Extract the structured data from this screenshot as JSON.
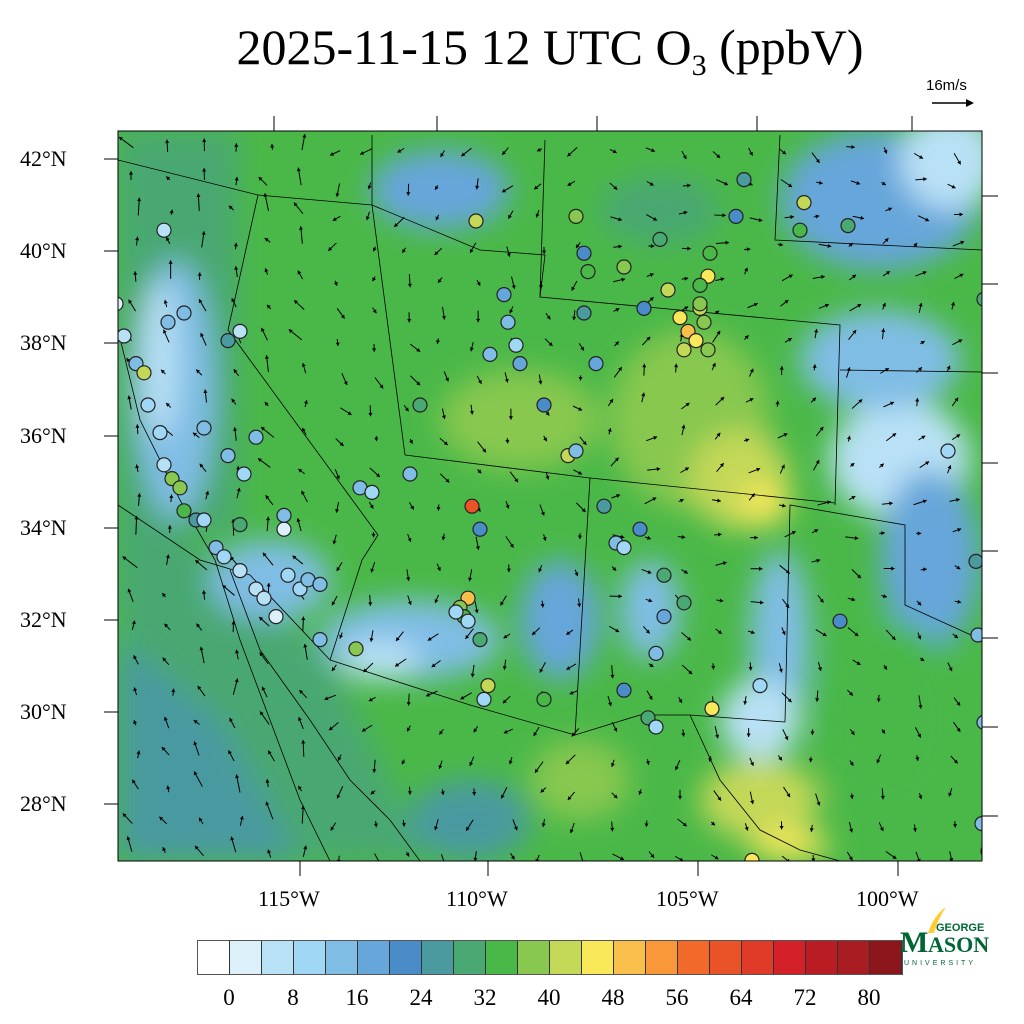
{
  "title": {
    "main": "2025-11-15 12 UTC O",
    "sub": "3",
    "units": " (ppbV)"
  },
  "wind_reference": {
    "label": "16m/s",
    "speed": 16
  },
  "axes": {
    "lat_labels": [
      "42°N",
      "40°N",
      "38°N",
      "36°N",
      "34°N",
      "32°N",
      "30°N",
      "28°N"
    ],
    "lon_labels": [
      "115°W",
      "110°W",
      "105°W",
      "100°W"
    ]
  },
  "colorbar": {
    "labels": [
      "0",
      "8",
      "16",
      "24",
      "32",
      "40",
      "48",
      "56",
      "64",
      "72",
      "80"
    ],
    "step": 4,
    "colors": [
      "#ffffff",
      "#dcf0fa",
      "#b9e1f6",
      "#9fd7f4",
      "#80bde5",
      "#66a6da",
      "#4a8cc8",
      "#4a9aa0",
      "#4aa872",
      "#4ab848",
      "#88c850",
      "#c4d858",
      "#f8e85a",
      "#f8c04a",
      "#f89838",
      "#f26a2a",
      "#ea5228",
      "#e03a28",
      "#d42028",
      "#ba1c24",
      "#a81c22",
      "#8c161c"
    ]
  },
  "logo": {
    "line1": "GEORGE",
    "line2": "MASON",
    "line3": "UNIVERSITY",
    "color": "#006633",
    "accent": "#ffcc33"
  },
  "stations": [
    {
      "lon": -104.5,
      "lat": 38.9,
      "o3": 46
    },
    {
      "lon": -104.3,
      "lat": 38.6,
      "o3": 48
    },
    {
      "lon": -104.1,
      "lat": 38.4,
      "o3": 44
    },
    {
      "lon": -104.4,
      "lat": 38.2,
      "o3": 42
    },
    {
      "lon": -104.0,
      "lat": 39.1,
      "o3": 40
    },
    {
      "lon": -103.9,
      "lat": 38.8,
      "o3": 36
    },
    {
      "lon": -104.0,
      "lat": 39.2,
      "o3": 38
    },
    {
      "lon": -103.8,
      "lat": 38.2,
      "o3": 36
    },
    {
      "lon": -103.8,
      "lat": 39.8,
      "o3": 44
    },
    {
      "lon": -104.8,
      "lat": 39.5,
      "o3": 40
    },
    {
      "lon": -118.6,
      "lat": 39.2,
      "o3": 2
    },
    {
      "lon": -118.4,
      "lat": 38.5,
      "o3": 6
    },
    {
      "lon": -118.1,
      "lat": 37.9,
      "o3": 12
    },
    {
      "lon": -117.9,
      "lat": 37.7,
      "o3": 40
    },
    {
      "lon": -117.8,
      "lat": 37.0,
      "o3": 8
    },
    {
      "lon": -117.5,
      "lat": 36.4,
      "o3": 10
    },
    {
      "lon": -117.4,
      "lat": 35.7,
      "o3": 6
    },
    {
      "lon": -117.2,
      "lat": 35.4,
      "o3": 38
    },
    {
      "lon": -117.0,
      "lat": 35.2,
      "o3": 36
    },
    {
      "lon": -116.9,
      "lat": 34.7,
      "o3": 34
    },
    {
      "lon": -116.6,
      "lat": 34.5,
      "o3": 24
    },
    {
      "lon": -116.4,
      "lat": 34.5,
      "o3": 8
    },
    {
      "lon": -116.1,
      "lat": 33.9,
      "o3": 12
    },
    {
      "lon": -115.9,
      "lat": 33.7,
      "o3": 8
    },
    {
      "lon": -115.5,
      "lat": 33.4,
      "o3": 6
    },
    {
      "lon": -115.1,
      "lat": 33.0,
      "o3": 4
    },
    {
      "lon": -114.9,
      "lat": 32.8,
      "o3": 6
    },
    {
      "lon": -114.6,
      "lat": 32.4,
      "o3": 2
    },
    {
      "lon": -114.4,
      "lat": 34.3,
      "o3": 2
    },
    {
      "lon": -114.3,
      "lat": 33.3,
      "o3": 8
    },
    {
      "lon": -114.0,
      "lat": 33.0,
      "o3": 10
    },
    {
      "lon": -113.8,
      "lat": 33.2,
      "o3": 14
    },
    {
      "lon": -113.5,
      "lat": 33.1,
      "o3": 12
    },
    {
      "lon": -115.5,
      "lat": 34.4,
      "o3": 30
    },
    {
      "lon": -115.4,
      "lat": 35.5,
      "o3": 10
    },
    {
      "lon": -115.8,
      "lat": 35.9,
      "o3": 14
    },
    {
      "lon": -116.4,
      "lat": 36.5,
      "o3": 12
    },
    {
      "lon": -115.5,
      "lat": 38.6,
      "o3": 6
    },
    {
      "lon": -115.8,
      "lat": 38.4,
      "o3": 24
    },
    {
      "lon": -115.1,
      "lat": 36.3,
      "o3": 12
    },
    {
      "lon": -114.4,
      "lat": 34.6,
      "o3": 14
    },
    {
      "lon": -113.5,
      "lat": 31.9,
      "o3": 14
    },
    {
      "lon": -112.6,
      "lat": 31.7,
      "o3": 36
    },
    {
      "lon": -117.4,
      "lat": 40.8,
      "o3": 6
    },
    {
      "lon": -117.3,
      "lat": 38.8,
      "o3": 14
    },
    {
      "lon": -116.9,
      "lat": 39.0,
      "o3": 12
    },
    {
      "lon": -109.7,
      "lat": 34.8,
      "o3": 60
    },
    {
      "lon": -109.8,
      "lat": 32.8,
      "o3": 48
    },
    {
      "lon": -110.0,
      "lat": 32.6,
      "o3": 38
    },
    {
      "lon": -109.9,
      "lat": 32.4,
      "o3": 34
    },
    {
      "lon": -109.8,
      "lat": 32.3,
      "o3": 10
    },
    {
      "lon": -110.1,
      "lat": 32.5,
      "o3": 8
    },
    {
      "lon": -109.5,
      "lat": 31.9,
      "o3": 30
    },
    {
      "lon": -109.3,
      "lat": 30.9,
      "o3": 40
    },
    {
      "lon": -109.4,
      "lat": 30.6,
      "o3": 10
    },
    {
      "lon": -109.5,
      "lat": 34.3,
      "o3": 20
    },
    {
      "lon": -111.25,
      "lat": 35.5,
      "o3": 12
    },
    {
      "lon": -112.5,
      "lat": 35.2,
      "o3": 14
    },
    {
      "lon": -112.2,
      "lat": 35.1,
      "o3": 10
    },
    {
      "lon": -107.9,
      "lat": 30.6,
      "o3": 32
    },
    {
      "lon": -105.9,
      "lat": 30.8,
      "o3": 20
    },
    {
      "lon": -105.1,
      "lat": 31.6,
      "o3": 12
    },
    {
      "lon": -105.3,
      "lat": 30.2,
      "o3": 30
    },
    {
      "lon": -105.1,
      "lat": 30.0,
      "o3": 8
    },
    {
      "lon": -103.7,
      "lat": 30.4,
      "o3": 46
    },
    {
      "lon": -102.5,
      "lat": 30.9,
      "o3": 10
    },
    {
      "lon": -102.7,
      "lat": 27.1,
      "o3": 44
    },
    {
      "lon": -109.6,
      "lat": 41.0,
      "o3": 42
    },
    {
      "lon": -108.9,
      "lat": 39.4,
      "o3": 16
    },
    {
      "lon": -108.8,
      "lat": 38.8,
      "o3": 12
    },
    {
      "lon": -108.6,
      "lat": 38.3,
      "o3": 10
    },
    {
      "lon": -108.5,
      "lat": 37.9,
      "o3": 16
    },
    {
      "lon": -109.25,
      "lat": 38.1,
      "o3": 14
    },
    {
      "lon": -107.9,
      "lat": 37.0,
      "o3": 22
    },
    {
      "lon": -111.0,
      "lat": 37.0,
      "o3": 30
    },
    {
      "lon": -107.3,
      "lat": 35.9,
      "o3": 40
    },
    {
      "lon": -107.1,
      "lat": 36.0,
      "o3": 12
    },
    {
      "lon": -106.4,
      "lat": 34.8,
      "o3": 24
    },
    {
      "lon": -106.1,
      "lat": 34.0,
      "o3": 12
    },
    {
      "lon": -105.9,
      "lat": 33.9,
      "o3": 10
    },
    {
      "lon": -105.5,
      "lat": 34.3,
      "o3": 22
    },
    {
      "lon": -104.9,
      "lat": 33.3,
      "o3": 30
    },
    {
      "lon": -104.9,
      "lat": 32.4,
      "o3": 18
    },
    {
      "lon": -104.4,
      "lat": 32.7,
      "o3": 28
    },
    {
      "lon": -107.1,
      "lat": 41.1,
      "o3": 36
    },
    {
      "lon": -106.9,
      "lat": 40.3,
      "o3": 20
    },
    {
      "lon": -106.8,
      "lat": 39.9,
      "o3": 32
    },
    {
      "lon": -106.6,
      "lat": 37.9,
      "o3": 18
    },
    {
      "lon": -106.9,
      "lat": 39.0,
      "o3": 24
    },
    {
      "lon": -105.9,
      "lat": 40.0,
      "o3": 36
    },
    {
      "lon": -105.0,
      "lat": 40.6,
      "o3": 30
    },
    {
      "lon": -105.4,
      "lat": 39.1,
      "o3": 22
    },
    {
      "lon": -104.0,
      "lat": 39.6,
      "o3": 34
    },
    {
      "lon": -103.75,
      "lat": 40.3,
      "o3": 32
    },
    {
      "lon": -103.1,
      "lat": 41.1,
      "o3": 20
    },
    {
      "lon": -102.9,
      "lat": 41.9,
      "o3": 26
    },
    {
      "lon": -101.4,
      "lat": 41.4,
      "o3": 42
    },
    {
      "lon": -101.5,
      "lat": 40.8,
      "o3": 34
    },
    {
      "lon": -100.3,
      "lat": 40.9,
      "o3": 30
    },
    {
      "lon": -96.9,
      "lat": 39.3,
      "o3": 30
    },
    {
      "lon": -97.8,
      "lat": 36.0,
      "o3": 10
    },
    {
      "lon": -97.1,
      "lat": 33.6,
      "o3": 26
    },
    {
      "lon": -100.5,
      "lat": 32.3,
      "o3": 22
    },
    {
      "lon": -97.05,
      "lat": 32.0,
      "o3": 14
    },
    {
      "lon": -96.55,
      "lat": 31.9,
      "o3": 12
    },
    {
      "lon": -96.9,
      "lat": 30.1,
      "o3": 14
    },
    {
      "lon": -96.8,
      "lat": 27.3,
      "o3": 14
    },
    {
      "lon": -96.95,
      "lat": 27.9,
      "o3": 12
    }
  ]
}
